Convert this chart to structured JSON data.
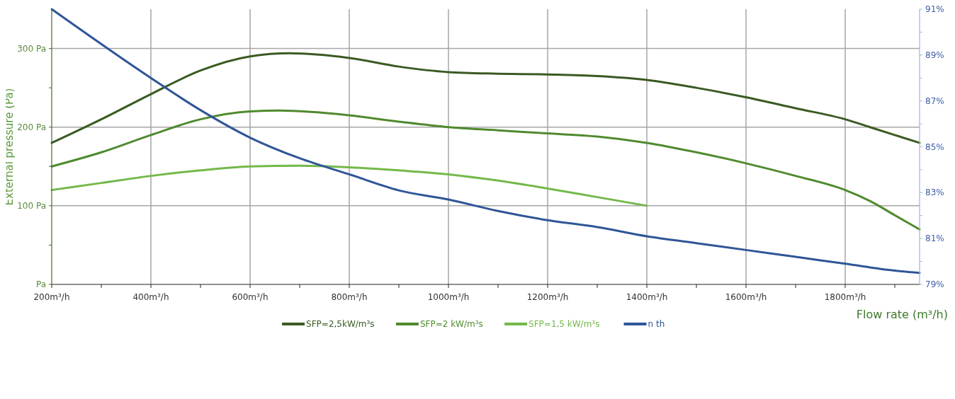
{
  "chart_data": {
    "type": "line",
    "xlabel": "Flow rate (m³/h)",
    "ylabel": "External pressure (Pa)",
    "xlim": [
      200,
      1950
    ],
    "xticks": [
      {
        "value": 200,
        "label": "200m³/h"
      },
      {
        "value": 300,
        "label": null
      },
      {
        "value": 400,
        "label": "400m³/h"
      },
      {
        "value": 500,
        "label": null
      },
      {
        "value": 600,
        "label": "600m³/h"
      },
      {
        "value": 700,
        "label": null
      },
      {
        "value": 800,
        "label": "800m³/h"
      },
      {
        "value": 900,
        "label": null
      },
      {
        "value": 1000,
        "label": "1000m³/h"
      },
      {
        "value": 1100,
        "label": null
      },
      {
        "value": 1200,
        "label": "1200m³/h"
      },
      {
        "value": 1300,
        "label": null
      },
      {
        "value": 1400,
        "label": "1400m³/h"
      },
      {
        "value": 1500,
        "label": null
      },
      {
        "value": 1600,
        "label": "1600m³/h"
      },
      {
        "value": 1700,
        "label": null
      },
      {
        "value": 1800,
        "label": "1800m³/h"
      },
      {
        "value": 1900,
        "label": null
      }
    ],
    "ylim": [
      0,
      350
    ],
    "yticks": [
      {
        "value": 0,
        "label": "Pa"
      },
      {
        "value": 50,
        "label": null
      },
      {
        "value": 100,
        "label": "100 Pa"
      },
      {
        "value": 150,
        "label": null
      },
      {
        "value": 200,
        "label": "200 Pa"
      },
      {
        "value": 250,
        "label": null
      },
      {
        "value": 300,
        "label": "300 Pa"
      }
    ],
    "y2lim": [
      79,
      91
    ],
    "y2ticks": [
      {
        "value": 79,
        "label": "79%"
      },
      {
        "value": 80,
        "label": null
      },
      {
        "value": 81,
        "label": "81%"
      },
      {
        "value": 82,
        "label": null
      },
      {
        "value": 83,
        "label": "83%"
      },
      {
        "value": 84,
        "label": null
      },
      {
        "value": 85,
        "label": "85%"
      },
      {
        "value": 86,
        "label": null
      },
      {
        "value": 87,
        "label": "87%"
      },
      {
        "value": 88,
        "label": null
      },
      {
        "value": 89,
        "label": "89%"
      },
      {
        "value": 90,
        "label": null
      },
      {
        "value": 91,
        "label": "91%"
      }
    ],
    "grid": true,
    "legend": "bottom",
    "line_style": "solid",
    "marker": "none",
    "series": [
      {
        "name": "SFP=2,5kW/m³s",
        "color": "#3a5a22",
        "x": [
          200,
          300,
          400,
          500,
          600,
          680,
          800,
          900,
          1000,
          1100,
          1200,
          1300,
          1400,
          1500,
          1600,
          1700,
          1800,
          1850,
          1950
        ],
        "values": [
          180,
          210,
          242,
          272,
          290,
          294,
          288,
          277,
          270,
          268,
          267,
          265,
          260,
          250,
          238,
          224,
          210,
          200,
          180
        ]
      },
      {
        "name": "SFP=2 kW/m³s",
        "color": "#4f8a2e",
        "x": [
          200,
          300,
          400,
          500,
          600,
          660,
          800,
          900,
          1000,
          1100,
          1200,
          1300,
          1400,
          1500,
          1600,
          1700,
          1800,
          1850,
          1900,
          1950
        ],
        "values": [
          150,
          168,
          190,
          210,
          220,
          221,
          215,
          207,
          200,
          196,
          192,
          188,
          180,
          168,
          154,
          138,
          120,
          106,
          88,
          70
        ]
      },
      {
        "name": "SFP=1,5 kW/m³s",
        "color": "#74b84a",
        "x": [
          200,
          300,
          400,
          500,
          600,
          700,
          800,
          900,
          1000,
          1100,
          1200,
          1300,
          1400
        ],
        "values": [
          120,
          129,
          138,
          145,
          150,
          151,
          149,
          145,
          140,
          132,
          122,
          111,
          100
        ]
      },
      {
        "name": "n th",
        "color": "#2f5597",
        "axis": "y2",
        "x": [
          200,
          400,
          500,
          600,
          700,
          800,
          900,
          1000,
          1100,
          1200,
          1300,
          1400,
          1500,
          1600,
          1700,
          1800,
          1900,
          1950
        ],
        "values": [
          91,
          88.0,
          86.6,
          85.4,
          84.5,
          83.8,
          83.1,
          82.7,
          82.2,
          81.8,
          81.5,
          81.1,
          80.8,
          80.5,
          80.2,
          79.9,
          79.6,
          79.5
        ]
      }
    ]
  }
}
